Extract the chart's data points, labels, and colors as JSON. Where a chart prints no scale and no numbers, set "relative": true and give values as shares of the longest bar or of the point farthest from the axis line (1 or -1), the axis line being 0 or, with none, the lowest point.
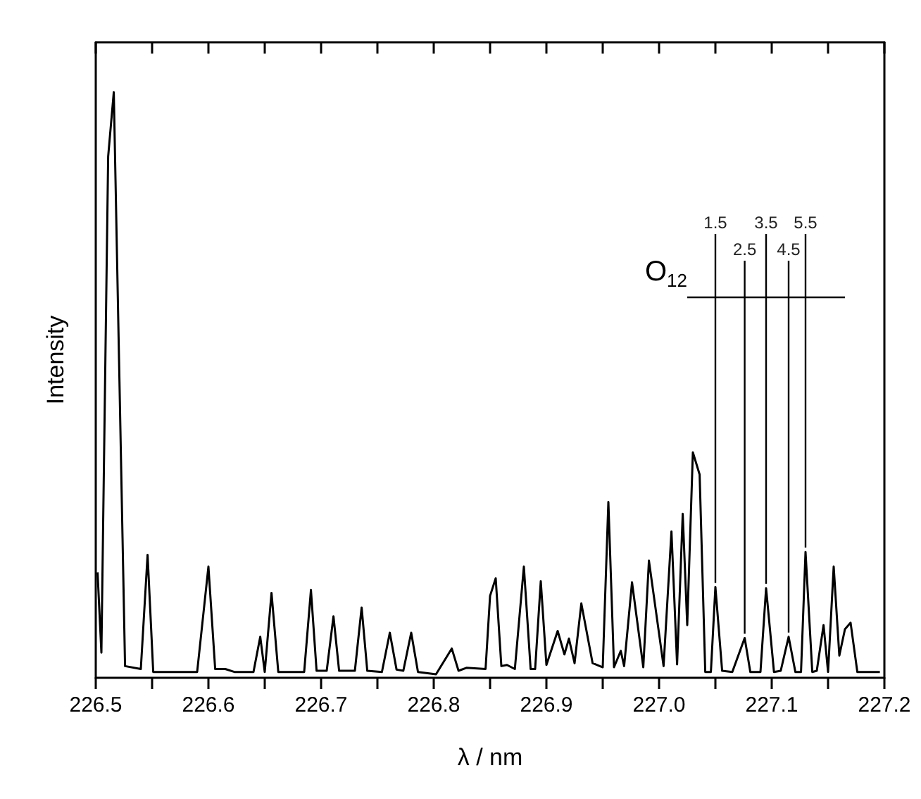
{
  "chart_data": {
    "type": "line",
    "relative": true,
    "xlabel": "λ / nm",
    "ylabel": "Intensity",
    "xlim": [
      226.5,
      227.2
    ],
    "xticks": [
      226.5,
      {
        "value": 226.55,
        "label": null
      },
      226.6,
      {
        "value": 226.65,
        "label": null
      },
      226.7,
      {
        "value": 226.75,
        "label": null
      },
      226.8,
      {
        "value": 226.85,
        "label": null
      },
      226.9,
      {
        "value": 226.95,
        "label": null
      },
      {
        "value": 227.0,
        "label": "227.0"
      },
      {
        "value": 227.05,
        "label": null
      },
      227.1,
      {
        "value": 227.15,
        "label": null
      },
      227.2
    ],
    "grid": false,
    "marker": "none",
    "line_style": "solid",
    "series": [
      {
        "color": "#000000",
        "x": [
          226.5016,
          226.505,
          226.511,
          226.516,
          226.526,
          226.54,
          226.546,
          226.551,
          226.59,
          226.6,
          226.606,
          226.615,
          226.623,
          226.64,
          226.646,
          226.65,
          226.656,
          226.662,
          226.685,
          226.691,
          226.696,
          226.705,
          226.711,
          226.716,
          226.73,
          226.736,
          226.741,
          226.754,
          226.761,
          226.767,
          226.773,
          226.78,
          226.786,
          226.802,
          226.816,
          226.822,
          226.829,
          226.846,
          226.85,
          226.855,
          226.86,
          226.865,
          226.872,
          226.88,
          226.886,
          226.89,
          226.895,
          226.9,
          226.91,
          226.916,
          226.92,
          226.925,
          226.931,
          226.941,
          226.95,
          226.955,
          226.96,
          226.966,
          226.969,
          226.976,
          226.986,
          226.991,
          227.004,
          227.011,
          227.016,
          227.021,
          227.025,
          227.03,
          227.036,
          227.041,
          227.046,
          227.05,
          227.056,
          227.065,
          227.076,
          227.081,
          227.09,
          227.095,
          227.102,
          227.108,
          227.115,
          227.121,
          227.126,
          227.13,
          227.136,
          227.14,
          227.146,
          227.15,
          227.155,
          227.16,
          227.165,
          227.17,
          227.176,
          227.196
        ],
        "values": [
          0.18,
          0.043,
          0.89,
          1.0,
          0.02,
          0.015,
          0.21,
          0.01,
          0.01,
          0.19,
          0.015,
          0.015,
          0.01,
          0.01,
          0.07,
          0.01,
          0.145,
          0.01,
          0.01,
          0.15,
          0.012,
          0.012,
          0.105,
          0.012,
          0.012,
          0.12,
          0.012,
          0.01,
          0.077,
          0.014,
          0.012,
          0.077,
          0.01,
          0.006,
          0.05,
          0.012,
          0.017,
          0.015,
          0.14,
          0.17,
          0.02,
          0.022,
          0.015,
          0.19,
          0.015,
          0.015,
          0.165,
          0.022,
          0.08,
          0.04,
          0.067,
          0.025,
          0.127,
          0.025,
          0.018,
          0.3,
          0.018,
          0.046,
          0.02,
          0.163,
          0.018,
          0.2,
          0.02,
          0.25,
          0.023,
          0.28,
          0.09,
          0.385,
          0.347,
          0.01,
          0.01,
          0.155,
          0.012,
          0.01,
          0.068,
          0.01,
          0.01,
          0.153,
          0.01,
          0.012,
          0.07,
          0.01,
          0.01,
          0.215,
          0.01,
          0.012,
          0.09,
          0.01,
          0.19,
          0.038,
          0.083,
          0.094,
          0.01,
          0.01
        ]
      }
    ],
    "annotations": [
      "O$_{12}$",
      {
        "text": "1.5",
        "x": 227.05,
        "y": 0.155
      },
      {
        "text": "2.5",
        "x": 227.076,
        "y": 0.068
      },
      {
        "text": "3.5",
        "x": 227.095,
        "y": 0.153
      },
      {
        "text": "4.5",
        "x": 227.115,
        "y": 0.07
      },
      {
        "text": "5.5",
        "x": 227.13,
        "y": 0.215
      }
    ]
  }
}
